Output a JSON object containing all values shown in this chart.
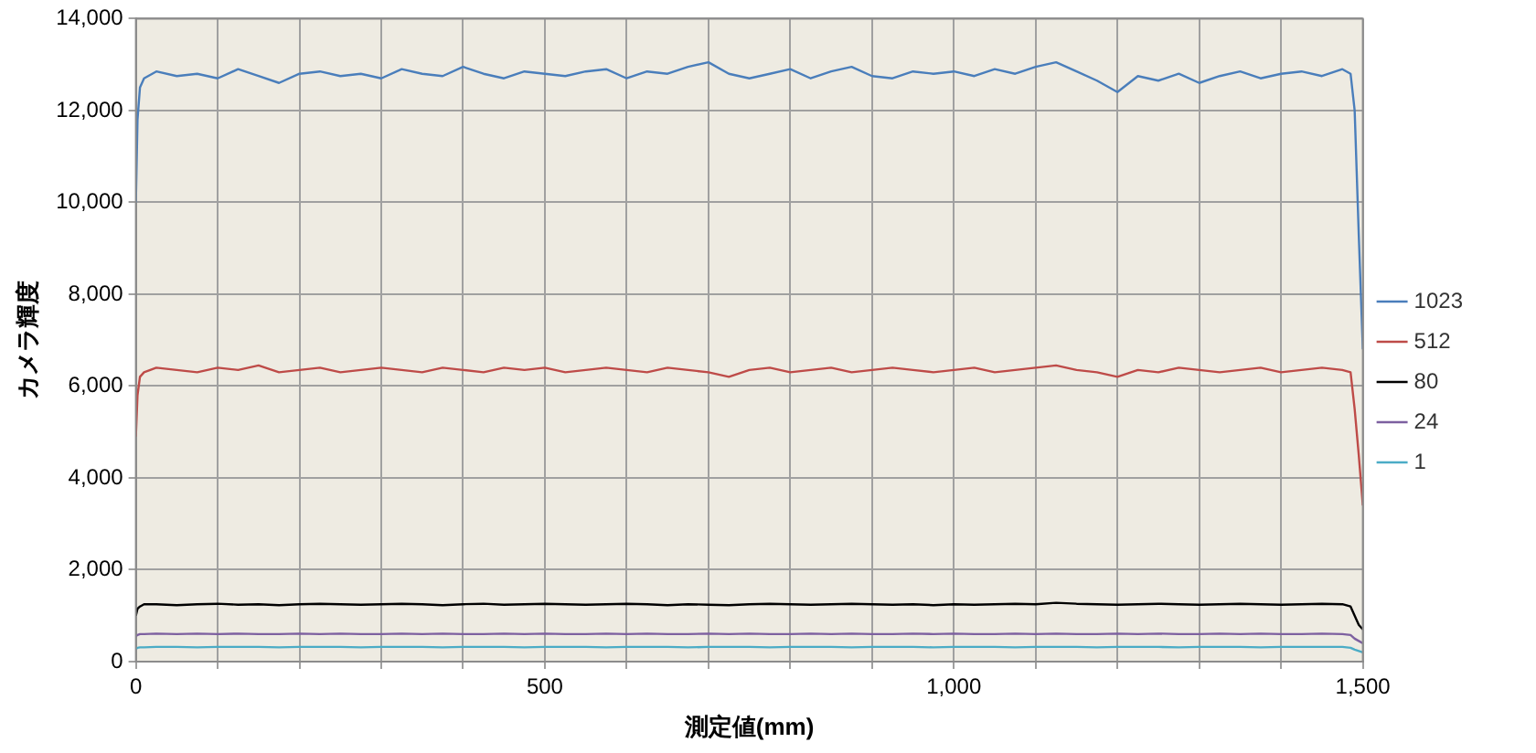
{
  "chart_data": {
    "type": "line",
    "xlabel": "測定値(mm)",
    "ylabel": "カメラ輝度",
    "x": [
      0,
      2,
      5,
      10,
      25,
      50,
      75,
      100,
      125,
      150,
      175,
      200,
      225,
      250,
      275,
      300,
      325,
      350,
      375,
      400,
      425,
      450,
      475,
      500,
      525,
      550,
      575,
      600,
      625,
      650,
      675,
      700,
      725,
      750,
      775,
      800,
      825,
      850,
      875,
      900,
      925,
      950,
      975,
      1000,
      1025,
      1050,
      1075,
      1100,
      1125,
      1150,
      1175,
      1200,
      1225,
      1250,
      1275,
      1300,
      1325,
      1350,
      1375,
      1400,
      1425,
      1450,
      1475,
      1485,
      1490,
      1495,
      1500
    ],
    "series": [
      {
        "name": "1023",
        "color": "#4a7ebb",
        "values": [
          10000,
          11800,
          12500,
          12700,
          12850,
          12750,
          12800,
          12700,
          12900,
          12750,
          12600,
          12800,
          12850,
          12750,
          12800,
          12700,
          12900,
          12800,
          12750,
          12950,
          12800,
          12700,
          12850,
          12800,
          12750,
          12850,
          12900,
          12700,
          12850,
          12800,
          12950,
          13050,
          12800,
          12700,
          12800,
          12900,
          12700,
          12850,
          12950,
          12750,
          12700,
          12850,
          12800,
          12850,
          12750,
          12900,
          12800,
          12950,
          13050,
          12850,
          12650,
          12400,
          12750,
          12650,
          12800,
          12600,
          12750,
          12850,
          12700,
          12800,
          12850,
          12750,
          12900,
          12800,
          12000,
          9300,
          6800
        ]
      },
      {
        "name": "512",
        "color": "#be4b48",
        "values": [
          4900,
          5800,
          6200,
          6300,
          6400,
          6350,
          6300,
          6400,
          6350,
          6450,
          6300,
          6350,
          6400,
          6300,
          6350,
          6400,
          6350,
          6300,
          6400,
          6350,
          6300,
          6400,
          6350,
          6400,
          6300,
          6350,
          6400,
          6350,
          6300,
          6400,
          6350,
          6300,
          6200,
          6350,
          6400,
          6300,
          6350,
          6400,
          6300,
          6350,
          6400,
          6350,
          6300,
          6350,
          6400,
          6300,
          6350,
          6400,
          6450,
          6350,
          6300,
          6200,
          6350,
          6300,
          6400,
          6350,
          6300,
          6350,
          6400,
          6300,
          6350,
          6400,
          6350,
          6300,
          5500,
          4500,
          3400
        ]
      },
      {
        "name": "80",
        "color": "#000000",
        "values": [
          1000,
          1150,
          1200,
          1250,
          1250,
          1230,
          1250,
          1260,
          1240,
          1250,
          1230,
          1250,
          1260,
          1250,
          1240,
          1250,
          1260,
          1250,
          1230,
          1250,
          1260,
          1240,
          1250,
          1260,
          1250,
          1240,
          1250,
          1260,
          1250,
          1230,
          1250,
          1240,
          1230,
          1250,
          1260,
          1250,
          1240,
          1250,
          1260,
          1250,
          1240,
          1250,
          1230,
          1250,
          1240,
          1250,
          1260,
          1250,
          1280,
          1260,
          1250,
          1240,
          1250,
          1260,
          1250,
          1240,
          1250,
          1260,
          1250,
          1240,
          1250,
          1260,
          1250,
          1200,
          1000,
          800,
          700
        ]
      },
      {
        "name": "24",
        "color": "#7d60a0",
        "values": [
          550,
          580,
          600,
          600,
          610,
          600,
          610,
          600,
          610,
          600,
          600,
          610,
          600,
          610,
          600,
          600,
          610,
          600,
          610,
          600,
          600,
          610,
          600,
          610,
          600,
          600,
          610,
          600,
          610,
          600,
          600,
          610,
          600,
          610,
          600,
          600,
          610,
          600,
          610,
          600,
          600,
          610,
          600,
          610,
          600,
          600,
          610,
          600,
          610,
          600,
          600,
          610,
          600,
          610,
          600,
          600,
          610,
          600,
          610,
          600,
          600,
          610,
          600,
          580,
          500,
          450,
          400
        ]
      },
      {
        "name": "1",
        "color": "#4bacc6",
        "values": [
          280,
          300,
          310,
          310,
          320,
          320,
          310,
          320,
          320,
          320,
          310,
          320,
          320,
          320,
          310,
          320,
          320,
          320,
          310,
          320,
          320,
          320,
          310,
          320,
          320,
          320,
          310,
          320,
          320,
          320,
          310,
          320,
          320,
          320,
          310,
          320,
          320,
          320,
          310,
          320,
          320,
          320,
          310,
          320,
          320,
          320,
          310,
          320,
          320,
          320,
          310,
          320,
          320,
          320,
          310,
          320,
          320,
          320,
          310,
          320,
          320,
          320,
          320,
          300,
          260,
          230,
          200
        ]
      }
    ],
    "xlim": [
      0,
      1500
    ],
    "xticks": [
      0,
      {
        "value": 100,
        "label": null
      },
      {
        "value": 200,
        "label": null
      },
      {
        "value": 300,
        "label": null
      },
      {
        "value": 400,
        "label": null
      },
      500,
      {
        "value": 600,
        "label": null
      },
      {
        "value": 700,
        "label": null
      },
      {
        "value": 800,
        "label": null
      },
      {
        "value": 900,
        "label": null
      },
      {
        "value": 1000,
        "label": "1,000"
      },
      {
        "value": 1100,
        "label": null
      },
      {
        "value": 1200,
        "label": null
      },
      {
        "value": 1300,
        "label": null
      },
      {
        "value": 1400,
        "label": null
      },
      {
        "value": 1500,
        "label": "1,500"
      }
    ],
    "ylim": [
      0,
      14000
    ],
    "yticks": [
      0,
      {
        "value": 2000,
        "label": "2,000"
      },
      {
        "value": 4000,
        "label": "4,000"
      },
      {
        "value": 6000,
        "label": "6,000"
      },
      {
        "value": 8000,
        "label": "8,000"
      },
      {
        "value": 10000,
        "label": "10,000"
      },
      {
        "value": 12000,
        "label": "12,000"
      },
      {
        "value": 14000,
        "label": "14,000"
      }
    ],
    "grid": true,
    "legend": "right",
    "marker": "none",
    "line_style": "solid"
  }
}
